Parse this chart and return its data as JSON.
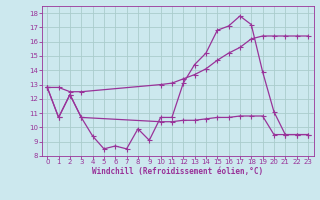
{
  "bg_color": "#cce8ee",
  "grid_color": "#aacccc",
  "line_color": "#993399",
  "xlabel": "Windchill (Refroidissement éolien,°C)",
  "xlabel_color": "#993399",
  "tick_color": "#993399",
  "xlim": [
    -0.5,
    23.5
  ],
  "ylim": [
    8,
    18.5
  ],
  "xticks": [
    0,
    1,
    2,
    3,
    4,
    5,
    6,
    7,
    8,
    9,
    10,
    11,
    12,
    13,
    14,
    15,
    16,
    17,
    18,
    19,
    20,
    21,
    22,
    23
  ],
  "yticks": [
    8,
    9,
    10,
    11,
    12,
    13,
    14,
    15,
    16,
    17,
    18
  ],
  "line1_x": [
    0,
    1,
    2,
    3,
    4,
    5,
    6,
    7,
    8,
    9,
    10,
    11,
    12,
    13,
    14,
    15,
    16,
    17,
    18,
    19,
    20,
    21,
    22,
    23
  ],
  "line1_y": [
    12.8,
    10.7,
    12.3,
    10.7,
    9.4,
    8.5,
    8.7,
    8.5,
    9.9,
    9.1,
    10.7,
    10.7,
    13.1,
    14.4,
    15.2,
    16.8,
    17.1,
    17.8,
    17.2,
    13.9,
    11.1,
    9.5,
    9.5,
    9.5
  ],
  "line2_x": [
    0,
    1,
    2,
    3,
    10,
    11,
    12,
    13,
    14,
    15,
    16,
    17,
    18,
    19,
    20,
    21,
    22,
    23
  ],
  "line2_y": [
    12.8,
    12.8,
    12.5,
    12.5,
    13.0,
    13.1,
    13.4,
    13.7,
    14.1,
    14.7,
    15.2,
    15.6,
    16.2,
    16.4,
    16.4,
    16.4,
    16.4,
    16.4
  ],
  "line3_x": [
    0,
    1,
    2,
    3,
    10,
    11,
    12,
    13,
    14,
    15,
    16,
    17,
    18,
    19,
    20,
    21,
    22,
    23
  ],
  "line3_y": [
    12.8,
    10.7,
    12.3,
    10.7,
    10.4,
    10.4,
    10.5,
    10.5,
    10.6,
    10.7,
    10.7,
    10.8,
    10.8,
    10.8,
    9.5,
    9.5,
    9.5,
    9.5
  ]
}
